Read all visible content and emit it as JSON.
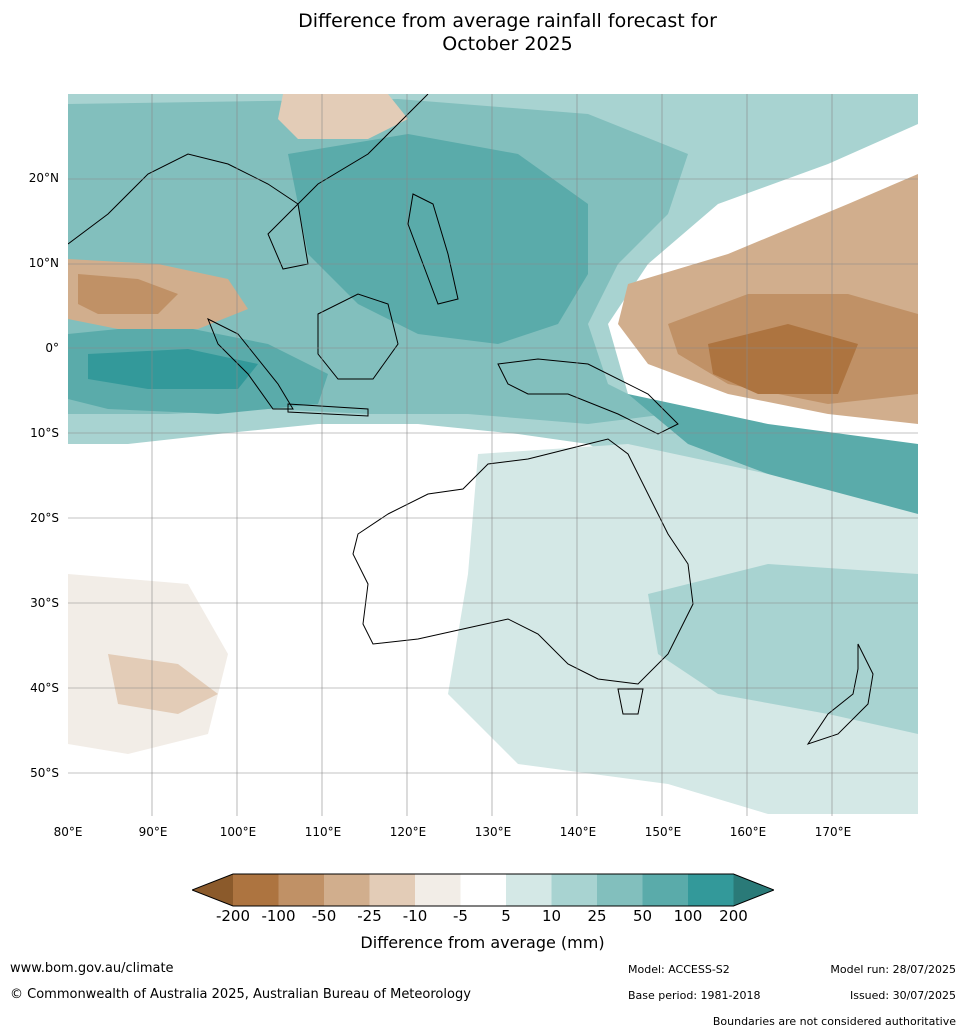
{
  "title_line1": "Difference from average rainfall forecast for",
  "title_line2": "October 2025",
  "map": {
    "lat_labels": [
      "20°N",
      "10°N",
      "0°",
      "10°S",
      "20°S",
      "30°S",
      "40°S",
      "50°S"
    ],
    "lon_labels": [
      "80°E",
      "90°E",
      "100°E",
      "110°E",
      "120°E",
      "130°E",
      "140°E",
      "150°E",
      "160°E",
      "170°E"
    ]
  },
  "legend": {
    "ticks": [
      "-200",
      "-100",
      "-50",
      "-25",
      "-10",
      "-5",
      "5",
      "10",
      "25",
      "50",
      "100",
      "200"
    ],
    "colors": [
      "#8b5a2b",
      "#ad7440",
      "#c09166",
      "#d1ae8d",
      "#e3ccb7",
      "#f2ede7",
      "#ffffff",
      "#d4e8e6",
      "#a8d3d1",
      "#82bfbd",
      "#5aabaa",
      "#33999a",
      "#2a7a78"
    ],
    "label": "Difference from average (mm)"
  },
  "footer": {
    "website": "www.bom.gov.au/climate",
    "copyright": "© Commonwealth of Australia 2025, Australian Bureau of Meteorology",
    "model": "Model: ACCESS-S2",
    "base_period": "Base period: 1981-2018",
    "model_run": "Model run: 28/07/2025",
    "issued": "Issued: 30/07/2025",
    "disclaimer": "Boundaries are not considered authoritative"
  }
}
